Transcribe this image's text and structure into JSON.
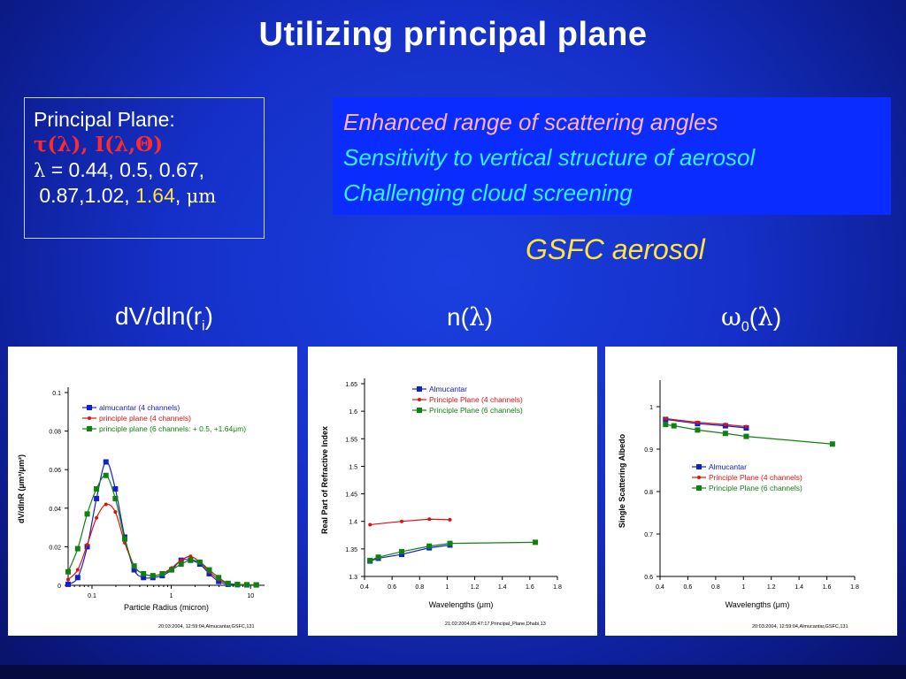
{
  "title": "Utilizing principal plane",
  "principal_plane": {
    "heading": "Principal Plane:",
    "params": "τ(λ), I(λ,Θ)",
    "lambda_sym": "λ",
    "lambda_eq": " = 0.44, 0.5, 0.67,",
    "line2": " 0.87,1.02, ",
    "yellow_val": "1.64",
    "unit_sep": ", ",
    "unit": "μm"
  },
  "features": [
    "Enhanced range of scattering angles",
    "Sensitivity to vertical structure of aerosol",
    "Challenging cloud screening"
  ],
  "gsfc_label": "GSFC aerosol",
  "headers": {
    "dv": "dV/dln(r",
    "dv_sub": "i",
    "dv_close": ")",
    "n": "n(",
    "n_sym": "λ",
    "n_close": ")",
    "w": "ω",
    "w_sub": "0",
    "w_open": "(",
    "w_sym": "λ",
    "w_close": ")"
  },
  "colors": {
    "almucantar": "#1020d0",
    "principle4": "#e01010",
    "principle6": "#108010"
  },
  "chart_data": [
    {
      "type": "line",
      "xlabel": "Particle Radius (micron)",
      "ylabel": "dV/dlnR (μm³/μm²)",
      "xscale": "log",
      "xlim": [
        0.05,
        15
      ],
      "ylim": [
        0,
        0.1
      ],
      "xticks": [
        0.1,
        1,
        10
      ],
      "xticklabels": [
        "0.1",
        "1",
        "10"
      ],
      "yticks": [
        0,
        0.02,
        0.04,
        0.06,
        0.08,
        0.1
      ],
      "yticklabels": [
        "0",
        "0.02",
        "0.04",
        "0.06",
        "0.08",
        "0.1"
      ],
      "legend_position": "top-left",
      "footnote": "20:03:2004,  12:59:04,Almucantar,GSFC,131",
      "series": [
        {
          "name": "almucantar (4 channels)",
          "color": "#1020d0",
          "marker": "square",
          "x": [
            0.05,
            0.066,
            0.087,
            0.114,
            0.15,
            0.197,
            0.259,
            0.34,
            0.446,
            0.586,
            0.77,
            1.01,
            1.33,
            1.75,
            2.29,
            3.01,
            3.96,
            5.2,
            6.83,
            8.97,
            11.8
          ],
          "y": [
            0.0005,
            0.004,
            0.02,
            0.045,
            0.064,
            0.05,
            0.025,
            0.008,
            0.004,
            0.004,
            0.005,
            0.008,
            0.013,
            0.013,
            0.011,
            0.006,
            0.002,
            0.0005,
            0.0003,
            0.0002,
            0.0002
          ]
        },
        {
          "name": "principle plane (4 channels)",
          "color": "#e01010",
          "marker": "circle",
          "x": [
            0.05,
            0.066,
            0.087,
            0.114,
            0.15,
            0.197,
            0.259,
            0.34,
            0.446,
            0.586,
            0.77,
            1.01,
            1.33,
            1.75,
            2.29,
            3.01,
            3.96,
            5.2,
            6.83,
            8.97,
            11.8
          ],
          "y": [
            0.003,
            0.008,
            0.021,
            0.035,
            0.042,
            0.038,
            0.022,
            0.01,
            0.006,
            0.005,
            0.006,
            0.009,
            0.013,
            0.015,
            0.012,
            0.007,
            0.003,
            0.001,
            0.0005,
            0.0003,
            0.0002
          ]
        },
        {
          "name": "principle plane (6 channels: + 0.5, +1.64μm)",
          "color": "#108010",
          "marker": "square",
          "x": [
            0.05,
            0.066,
            0.087,
            0.114,
            0.15,
            0.197,
            0.259,
            0.34,
            0.446,
            0.586,
            0.77,
            1.01,
            1.33,
            1.75,
            2.29,
            3.01,
            3.96,
            5.2,
            6.83,
            8.97,
            11.8
          ],
          "y": [
            0.007,
            0.019,
            0.037,
            0.05,
            0.057,
            0.045,
            0.024,
            0.01,
            0.006,
            0.005,
            0.006,
            0.008,
            0.011,
            0.013,
            0.012,
            0.008,
            0.004,
            0.001,
            0.0005,
            0.0003,
            0.0002
          ]
        }
      ]
    },
    {
      "type": "line",
      "xlabel": "Wavelengths (μm)",
      "ylabel": "Real Part of  Refractive Index",
      "xlim": [
        0.4,
        1.8
      ],
      "ylim": [
        1.3,
        1.65
      ],
      "xticks": [
        0.4,
        0.6,
        0.8,
        1,
        1.2,
        1.4,
        1.6,
        1.8
      ],
      "xticklabels": [
        "0.4",
        "0.6",
        "0.8",
        "1",
        "1.2",
        "1.4",
        "1.6",
        "1.8"
      ],
      "yticks": [
        1.3,
        1.35,
        1.4,
        1.45,
        1.5,
        1.55,
        1.6,
        1.65
      ],
      "yticklabels": [
        "1.3",
        "1.35",
        "1.4",
        "1.45",
        "1.5",
        "1.55",
        "1.6",
        "1.65"
      ],
      "legend_position": "top-center",
      "footnote": "21:02:2004,05:47:17,Principal_Plane,Dhabi,13",
      "series": [
        {
          "name": "Almucantar",
          "color": "#1020d0",
          "marker": "square",
          "x": [
            0.44,
            0.5,
            0.67,
            0.87,
            1.02
          ],
          "y": [
            1.328,
            1.333,
            1.34,
            1.352,
            1.357
          ]
        },
        {
          "name": "Principle Plane (4 channels)",
          "color": "#e01010",
          "marker": "circle",
          "x": [
            0.44,
            0.67,
            0.87,
            1.02
          ],
          "y": [
            1.394,
            1.4,
            1.404,
            1.403
          ]
        },
        {
          "name": "Principle Plane (6 channels)",
          "color": "#108010",
          "marker": "square",
          "x": [
            0.44,
            0.5,
            0.67,
            0.87,
            1.02,
            1.64
          ],
          "y": [
            1.329,
            1.335,
            1.345,
            1.355,
            1.36,
            1.362
          ]
        }
      ]
    },
    {
      "type": "line",
      "xlabel": "Wavelengths (μm)",
      "ylabel": "Single Scattering Albedo",
      "xlim": [
        0.4,
        1.8
      ],
      "ylim": [
        0.6,
        1.05
      ],
      "xticks": [
        0.4,
        0.6,
        0.8,
        1,
        1.2,
        1.4,
        1.6,
        1.8
      ],
      "xticklabels": [
        "0.4",
        "0.6",
        "0.8",
        "1",
        "1.2",
        "1.4",
        "1.6",
        "1.8"
      ],
      "yticks": [
        0.6,
        0.7,
        0.8,
        0.9,
        1
      ],
      "yticklabels": [
        "0.6",
        "0.7",
        "0.8",
        "0.9",
        "1"
      ],
      "legend_position": "center",
      "footnote": "20:03:2004,  12:59:04,Almucantar,GSFC,131",
      "series": [
        {
          "name": "Almucantar",
          "color": "#1020d0",
          "marker": "square",
          "x": [
            0.44,
            0.67,
            0.87,
            1.02
          ],
          "y": [
            0.97,
            0.96,
            0.955,
            0.95
          ]
        },
        {
          "name": "Principle Plane (4 channels)",
          "color": "#e01010",
          "marker": "circle",
          "x": [
            0.44,
            0.67,
            0.87,
            1.02
          ],
          "y": [
            0.972,
            0.963,
            0.958,
            0.953
          ]
        },
        {
          "name": "Principle Plane (6 channels)",
          "color": "#108010",
          "marker": "square",
          "x": [
            0.44,
            0.5,
            0.67,
            0.87,
            1.02,
            1.64
          ],
          "y": [
            0.958,
            0.955,
            0.945,
            0.937,
            0.93,
            0.912
          ]
        }
      ]
    }
  ]
}
